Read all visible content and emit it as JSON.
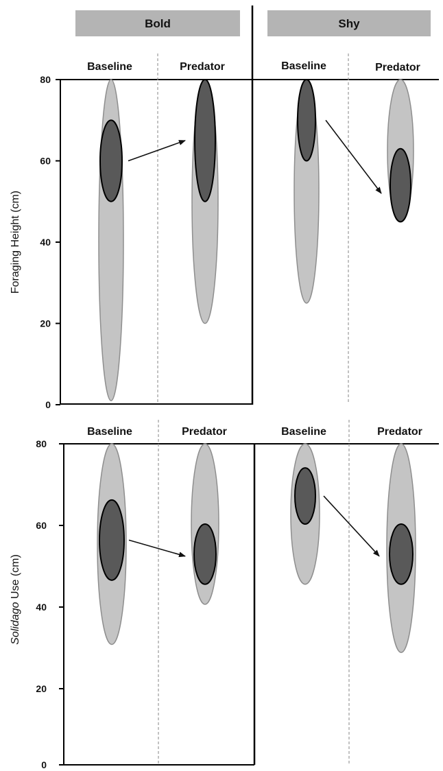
{
  "figure": {
    "groups": [
      "Bold",
      "Shy"
    ],
    "conditions": [
      "Baseline",
      "Predator"
    ],
    "y_ticks": [
      "0",
      "20",
      "40",
      "60",
      "80"
    ]
  },
  "chart_data": [
    {
      "type": "scatter",
      "ylabel": "Foraging Height (cm)",
      "ylim": [
        0,
        80
      ],
      "panels": [
        {
          "group": "Bold",
          "condition": "Baseline",
          "range": [
            1,
            80
          ],
          "core": [
            50,
            70
          ]
        },
        {
          "group": "Bold",
          "condition": "Predator",
          "range": [
            20,
            80
          ],
          "core": [
            50,
            80
          ]
        },
        {
          "group": "Shy",
          "condition": "Baseline",
          "range": [
            25,
            80
          ],
          "core": [
            60,
            80
          ]
        },
        {
          "group": "Shy",
          "condition": "Predator",
          "range": [
            45,
            80
          ],
          "core": [
            45,
            63
          ]
        }
      ],
      "arrows": [
        {
          "group": "Bold",
          "from": 60,
          "to": 65
        },
        {
          "group": "Shy",
          "from": 70,
          "to": 52
        }
      ]
    },
    {
      "type": "scatter",
      "ylabel_italic": "Solidago",
      "ylabel": "Use (cm)",
      "ylim": [
        0,
        80
      ],
      "panels": [
        {
          "group": "Bold",
          "condition": "Baseline",
          "range": [
            30,
            80
          ],
          "core": [
            46,
            66
          ]
        },
        {
          "group": "Bold",
          "condition": "Predator",
          "range": [
            40,
            80
          ],
          "core": [
            45,
            60
          ]
        },
        {
          "group": "Shy",
          "condition": "Baseline",
          "range": [
            45,
            80
          ],
          "core": [
            60,
            74
          ]
        },
        {
          "group": "Shy",
          "condition": "Predator",
          "range": [
            28,
            80
          ],
          "core": [
            45,
            60
          ]
        }
      ],
      "arrows": [
        {
          "group": "Bold",
          "from": 56,
          "to": 52
        },
        {
          "group": "Shy",
          "from": 67,
          "to": 52
        }
      ]
    }
  ]
}
